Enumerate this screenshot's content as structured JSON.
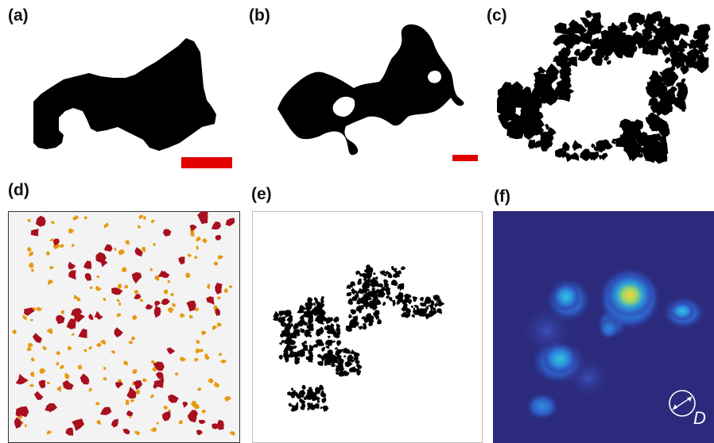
{
  "panels": [
    {
      "id": "a",
      "label": "(a)"
    },
    {
      "id": "b",
      "label": "(b)"
    },
    {
      "id": "c",
      "label": "(c)"
    },
    {
      "id": "d",
      "label": "(d)"
    },
    {
      "id": "e",
      "label": "(e)"
    },
    {
      "id": "f",
      "label": "(f)"
    }
  ],
  "panel_f": {
    "diameter_symbol": "D"
  },
  "colors": {
    "scale_bar": "#e00000",
    "particle_large": "#a8101e",
    "particle_small": "#e69a10",
    "panel_d_bg": "#f3f3f3",
    "heatmap_bg": "#2b2a7c"
  }
}
